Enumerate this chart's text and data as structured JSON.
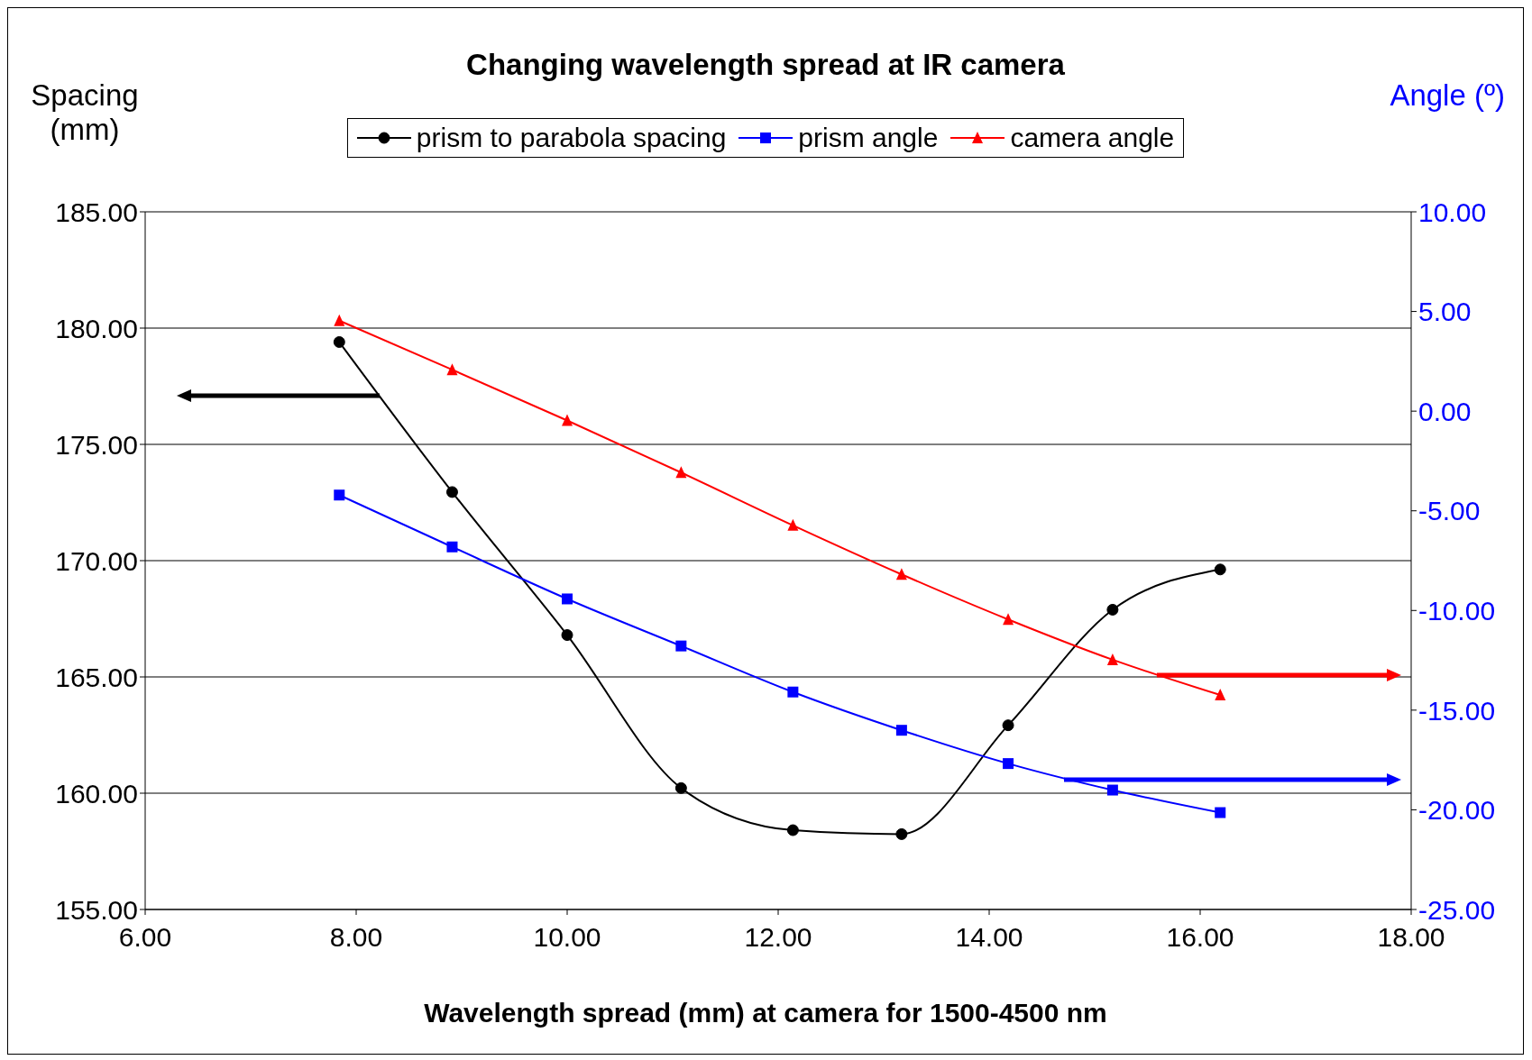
{
  "chart_data": {
    "type": "line",
    "title": "Changing wavelength spread at IR camera",
    "xlabel": "Wavelength spread (mm) at camera for 1500-4500 nm",
    "ylabel": "Spacing\n(mm)",
    "y2label": "Angle (º)",
    "x": [
      7.84,
      8.91,
      10.0,
      11.08,
      12.14,
      13.17,
      14.18,
      15.17,
      16.19
    ],
    "series": [
      {
        "name": "prism to parabola spacing",
        "color": "#000000",
        "marker": "circle",
        "values": [
          179.4,
          172.95,
          166.8,
          160.22,
          158.41,
          158.24,
          162.92,
          167.89,
          169.62
        ]
      },
      {
        "name": "prism angle",
        "color": "#0000ff",
        "marker": "square",
        "axis": "y2",
        "values": [
          -4.21,
          -6.81,
          -9.42,
          -11.78,
          -14.09,
          -16.01,
          -17.68,
          -19.01,
          -20.14
        ]
      },
      {
        "name": "camera angle",
        "color": "#ff0000",
        "marker": "triangle",
        "axis": "y2",
        "values": [
          4.54,
          2.08,
          -0.47,
          -3.08,
          -5.73,
          -8.19,
          -10.45,
          -12.47,
          -14.24
        ]
      }
    ],
    "xlim": [
      6,
      18
    ],
    "xticks": [
      {
        "value": 6,
        "label": "6.00"
      },
      {
        "value": 8,
        "label": "8.00"
      },
      {
        "value": 10,
        "label": "10.00"
      },
      {
        "value": 12,
        "label": "12.00"
      },
      {
        "value": 14,
        "label": "14.00"
      },
      {
        "value": 16,
        "label": "16.00"
      },
      {
        "value": 18,
        "label": "18.00"
      }
    ],
    "ylim": [
      155,
      185
    ],
    "yticks": [
      {
        "value": 155,
        "label": "155.00"
      },
      {
        "value": 160,
        "label": "160.00"
      },
      {
        "value": 165,
        "label": "165.00"
      },
      {
        "value": 170,
        "label": "170.00"
      },
      {
        "value": 175,
        "label": "175.00"
      },
      {
        "value": 180,
        "label": "180.00"
      },
      {
        "value": 185,
        "label": "185.00"
      }
    ],
    "y2lim": [
      -25,
      10
    ],
    "y2ticks": [
      {
        "value": -25,
        "label": "-25.00"
      },
      {
        "value": -20,
        "label": "-20.00"
      },
      {
        "value": -15,
        "label": "-15.00"
      },
      {
        "value": -10,
        "label": "-10.00"
      },
      {
        "value": -5,
        "label": "-5.00"
      },
      {
        "value": 0,
        "label": "0.00"
      },
      {
        "value": 5,
        "label": "5.00"
      },
      {
        "value": 10,
        "label": "10.00"
      }
    ],
    "grid": "y",
    "legend": "top",
    "line_style": "solid"
  }
}
